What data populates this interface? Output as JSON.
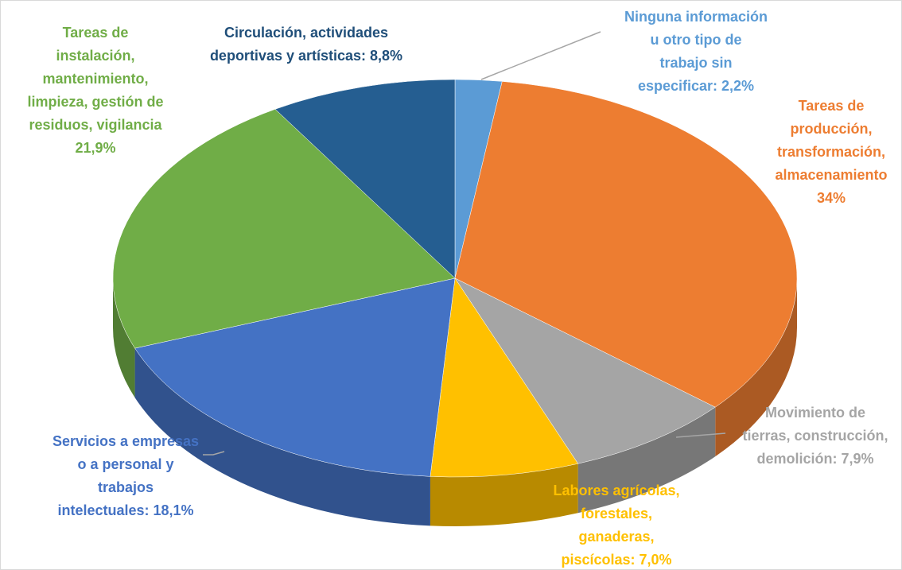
{
  "chart_data": {
    "type": "pie3d",
    "values": [
      2.2,
      34,
      7.9,
      7.0,
      18.1,
      21.9,
      8.8
    ],
    "value_labels": [
      [
        "Ninguna información",
        "u otro tipo de",
        "trabajo sin",
        "especificar: 2,2%"
      ],
      [
        "Tareas de",
        "producción,",
        "transformación,",
        "almacenamiento",
        "34%"
      ],
      [
        "Movimiento de",
        "tierras, construcción,",
        "demolición: 7,9%"
      ],
      [
        "Labores agrícolas,",
        "forestales,",
        "ganaderas,",
        "piscícolas: 7,0%"
      ],
      [
        "Servicios a empresas",
        "o a personal y",
        "trabajos",
        "intelectuales: 18,1%"
      ],
      [
        "Tareas de",
        "instalación,",
        "mantenimiento,",
        "limpieza, gestión de",
        "residuos, vigilancia",
        "21,9%"
      ],
      [
        "Circulación, actividades",
        "deportivas y artísticas: 8,8%"
      ]
    ],
    "colors": [
      "#5b9bd5",
      "#ed7d31",
      "#a5a5a5",
      "#ffc000",
      "#4472c4",
      "#70ad47",
      "#255e91"
    ]
  }
}
